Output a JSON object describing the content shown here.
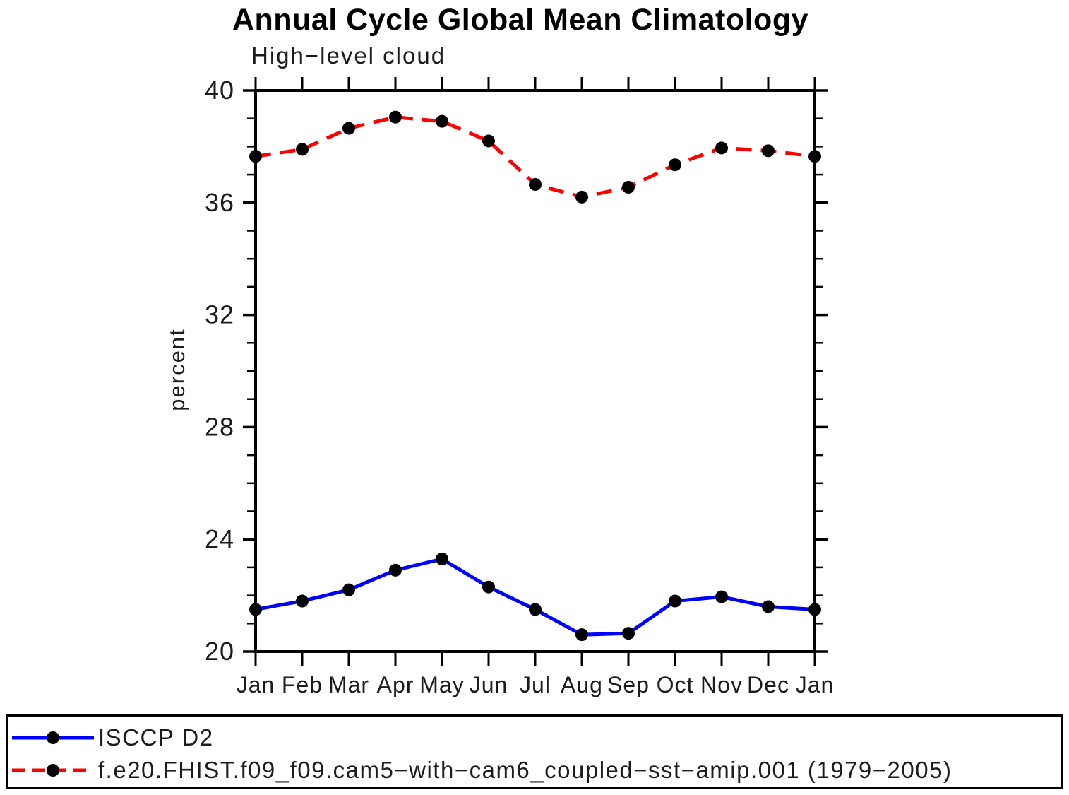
{
  "chart_data": {
    "type": "line",
    "title": "Annual Cycle Global Mean Climatology",
    "subtitle": "High−level cloud",
    "xlabel": "",
    "ylabel": "percent",
    "categories": [
      "Jan",
      "Feb",
      "Mar",
      "Apr",
      "May",
      "Jun",
      "Jul",
      "Aug",
      "Sep",
      "Oct",
      "Nov",
      "Dec",
      "Jan"
    ],
    "ylim": [
      20,
      40
    ],
    "ytick_major": [
      20,
      24,
      28,
      32,
      36,
      40
    ],
    "ytick_minor_step": 1,
    "grid": false,
    "legend_position": "bottom-box",
    "series": [
      {
        "name": "ISCCP D2",
        "color": "#0000ff",
        "style": "solid",
        "marker": "filled-circle",
        "marker_color": "#000000",
        "values": [
          21.5,
          21.8,
          22.2,
          22.9,
          23.3,
          22.3,
          21.5,
          20.6,
          20.65,
          21.8,
          21.95,
          21.6,
          21.5
        ]
      },
      {
        "name": "f.e20.FHIST.f09_f09.cam5−with−cam6_coupled−sst−amip.001 (1979−2005)",
        "color": "#ff0000",
        "style": "dashed",
        "marker": "filled-circle",
        "marker_color": "#000000",
        "values": [
          37.65,
          37.9,
          38.65,
          39.05,
          38.9,
          38.2,
          36.65,
          36.2,
          36.55,
          37.35,
          37.95,
          37.85,
          37.65
        ]
      }
    ]
  }
}
